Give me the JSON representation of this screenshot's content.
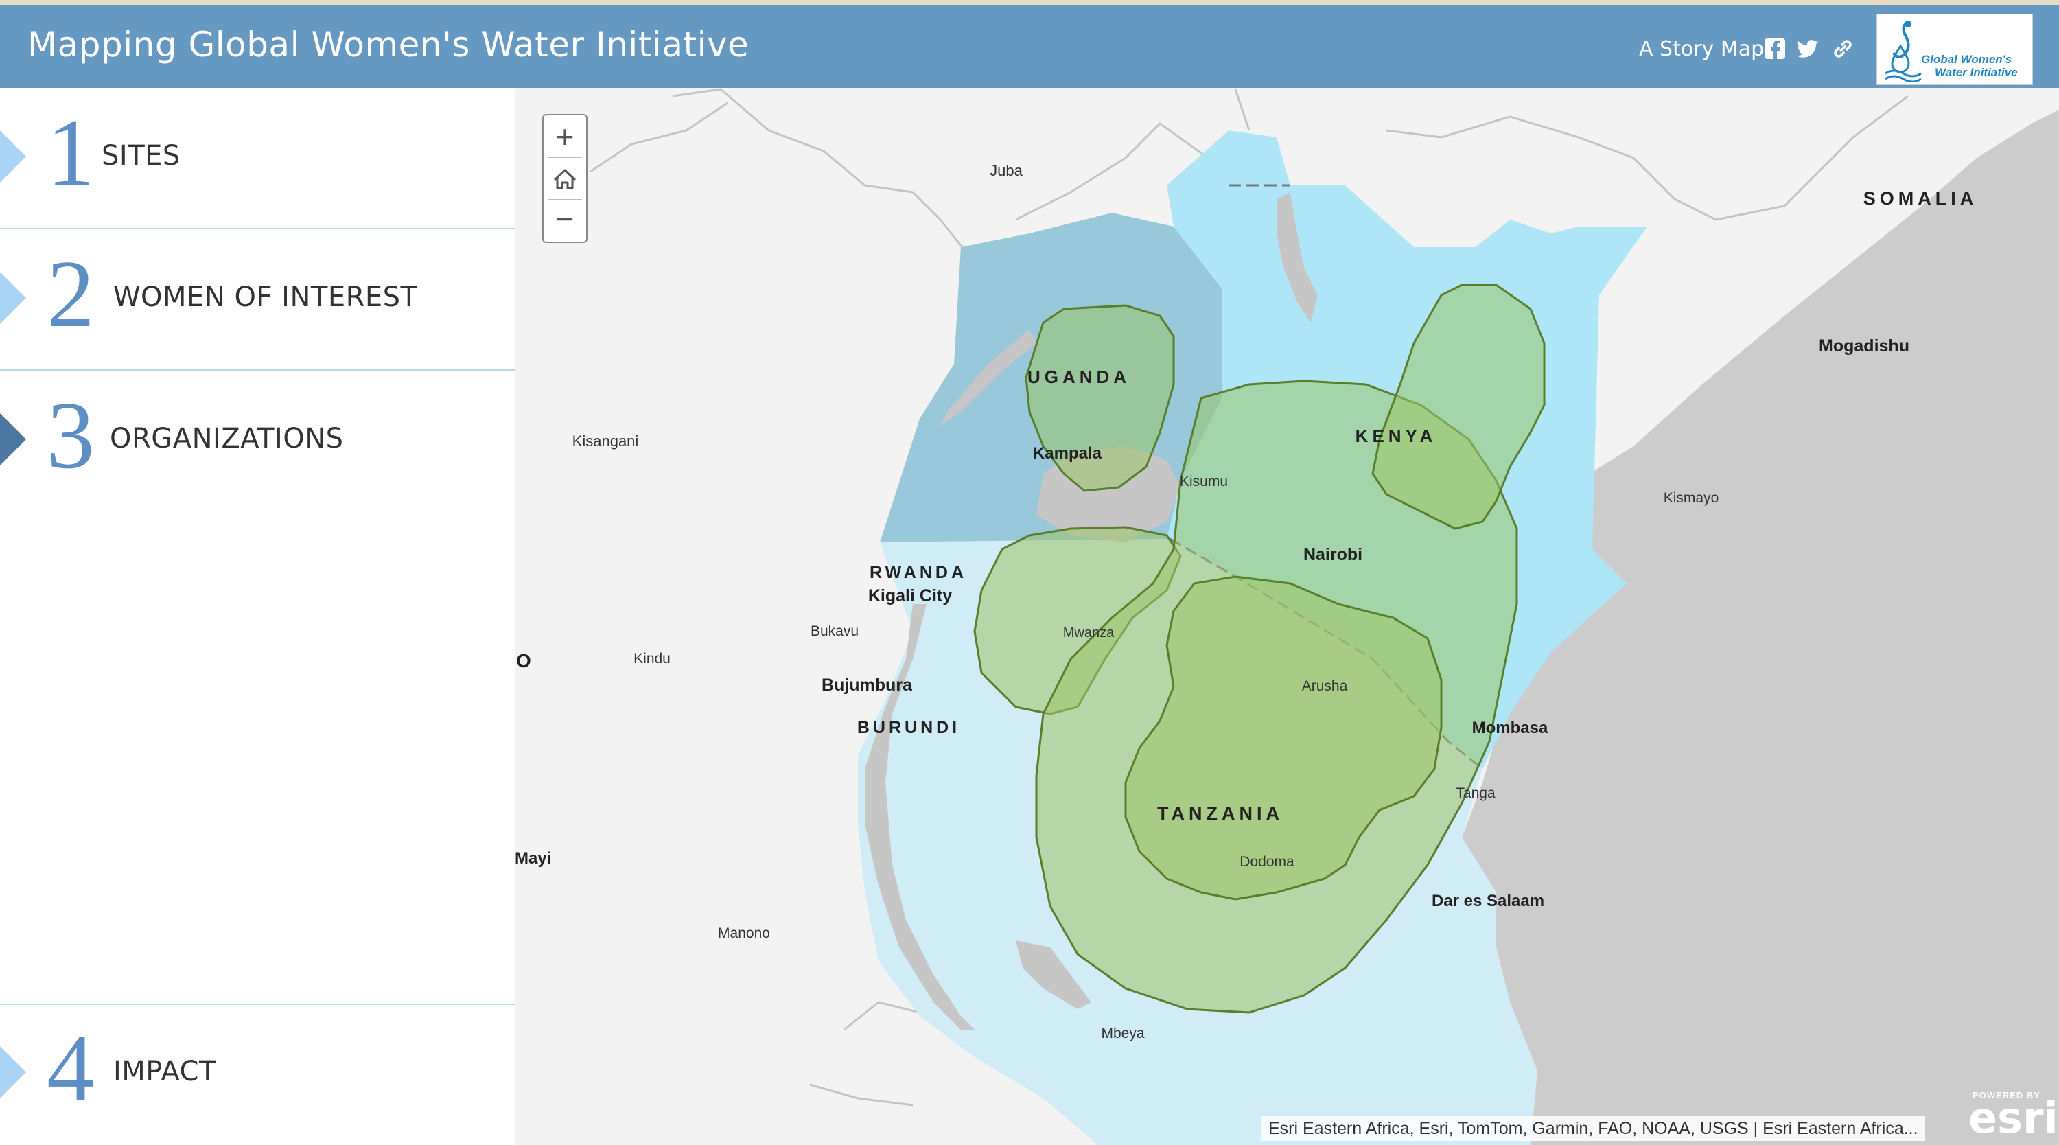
{
  "header": {
    "title": "Mapping Global Women's Water Initiative",
    "story_label": "A Story Map",
    "logo_text_line1": "Global Women's",
    "logo_text_line2": "Water Initiative"
  },
  "sidebar": {
    "items": [
      {
        "number": "1",
        "label": "SITES"
      },
      {
        "number": "2",
        "label": "WOMEN OF INTEREST"
      },
      {
        "number": "3",
        "label": "ORGANIZATIONS"
      },
      {
        "number": "4",
        "label": "IMPACT"
      }
    ]
  },
  "map": {
    "labels": {
      "juba": "Juba",
      "somalia": "SOMALIA",
      "mogadishu": "Mogadishu",
      "uganda": "UGANDA",
      "kenya": "KENYA",
      "kisangani": "Kisangani",
      "kampala": "Kampala",
      "kisumu": "Kisumu",
      "kismayo": "Kismayo",
      "nairobi": "Nairobi",
      "rwanda": "RWANDA",
      "kigali": "Kigali City",
      "bukavu": "Bukavu",
      "mwanza": "Mwanza",
      "kindu": "Kindu",
      "o_fragment": "O",
      "arusha": "Arusha",
      "bujumbura": "Bujumbura",
      "burundi": "BURUNDI",
      "mombasa": "Mombasa",
      "tanga": "Tanga",
      "tanzania": "TANZANIA",
      "mayi": "Mayi",
      "dodoma": "Dodoma",
      "dar": "Dar es Salaam",
      "manono": "Manono",
      "mbeya": "Mbeya"
    },
    "attribution": "Esri Eastern Africa, Esri, TomTom, Garmin, FAO, NOAA, USGS | Esri Eastern Africa...",
    "esri_powered": "POWERED BY",
    "esri_logo": "esri",
    "colors": {
      "uganda_fill": "#98c8da",
      "kenya_fill": "#aee6f7",
      "tanzania_fill": "#d0ecf6",
      "buffer_fill": "#9cc46a",
      "buffer_stroke": "#5a7f2c",
      "ocean": "#cccccc",
      "lake": "#c2c2c2"
    }
  }
}
